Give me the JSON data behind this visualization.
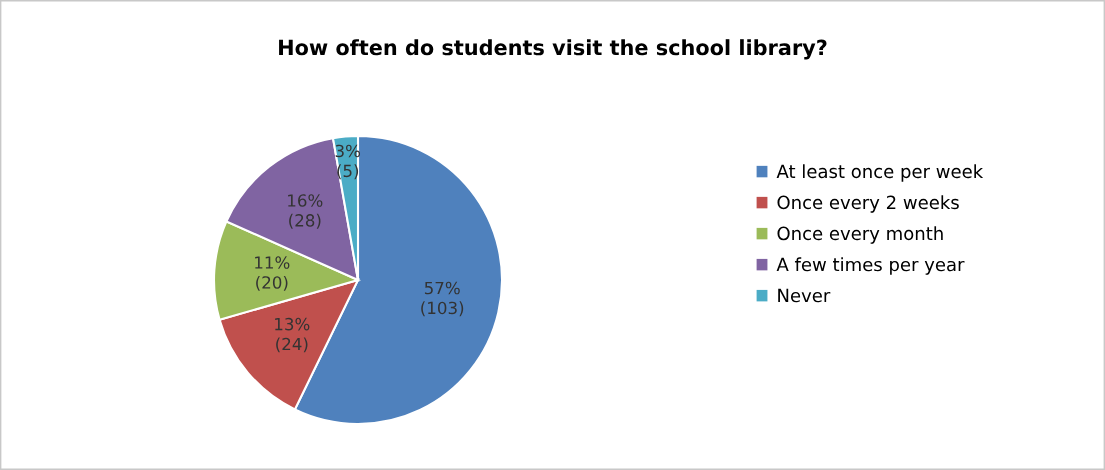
{
  "chart_data": {
    "type": "pie",
    "title": "How often do students visit the school library?",
    "categories": [
      "At least once per week",
      "Once every 2 weeks",
      "Once every month",
      "A few times per year",
      "Never"
    ],
    "values": [
      103,
      24,
      20,
      28,
      5
    ],
    "value_labels": [
      "57%\n(103)",
      "13%\n(24)",
      "11%\n(20)",
      "16%\n(28)",
      "3%\n(5)"
    ],
    "colors": [
      "#4f81bd",
      "#c0504d",
      "#9bbb59",
      "#8064a2",
      "#4bacc6"
    ],
    "legend": "right"
  }
}
